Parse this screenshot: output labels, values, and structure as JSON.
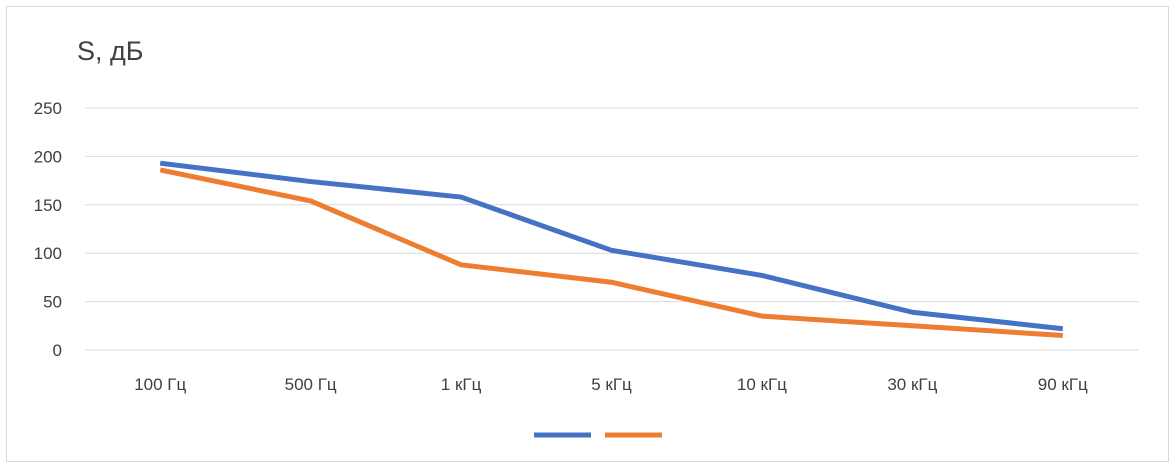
{
  "chart_data": {
    "type": "line",
    "title": "",
    "ylabel": "S, дБ",
    "xlabel": "",
    "categories": [
      "100 Гц",
      "500 Гц",
      "1 кГц",
      "5 кГц",
      "10 кГц",
      "30 кГц",
      "90 кГц"
    ],
    "ylim": [
      0,
      250
    ],
    "yticks": [
      0,
      50,
      100,
      150,
      200,
      250
    ],
    "grid": true,
    "legend": "bottom",
    "series": [
      {
        "color": "#4472c4",
        "values": [
          193,
          174,
          158,
          103,
          77,
          39,
          22
        ]
      },
      {
        "color": "#ed7d31",
        "values": [
          186,
          154,
          88,
          70,
          35,
          25,
          15
        ]
      }
    ]
  }
}
